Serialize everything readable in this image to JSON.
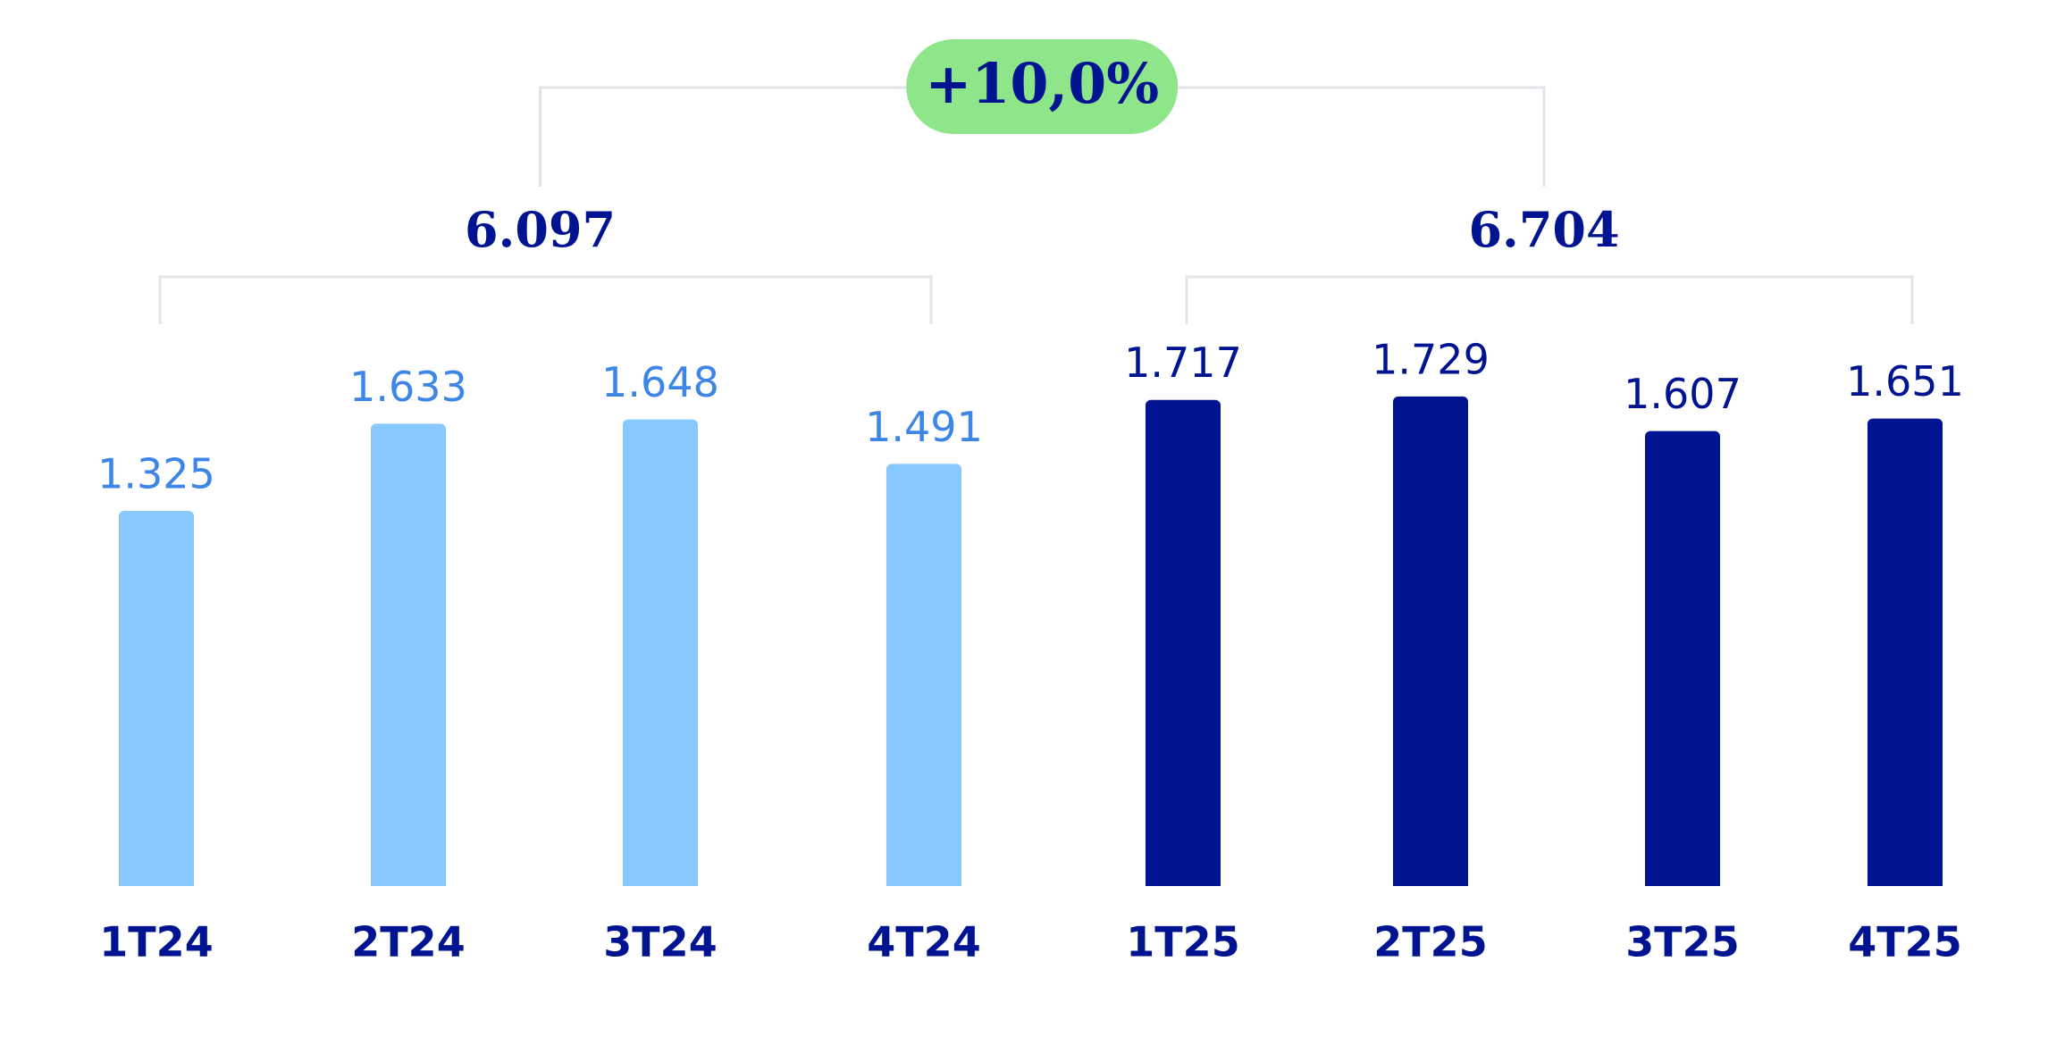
{
  "chart_data": {
    "type": "bar",
    "categories": [
      "1T24",
      "2T24",
      "3T24",
      "4T24",
      "1T25",
      "2T25",
      "3T25",
      "4T25"
    ],
    "values": [
      1325,
      1633,
      1648,
      1491,
      1717,
      1729,
      1607,
      1651
    ],
    "value_labels": [
      "1.325",
      "1.633",
      "1.648",
      "1.491",
      "1.717",
      "1.729",
      "1.607",
      "1.651"
    ],
    "colors": [
      "#87c8ff",
      "#87c8ff",
      "#87c8ff",
      "#87c8ff",
      "#001391",
      "#001391",
      "#001391",
      "#001391"
    ],
    "label_colors": [
      "#3d86e8",
      "#3d86e8",
      "#3d86e8",
      "#3d86e8",
      "#001391",
      "#001391",
      "#001391",
      "#001391"
    ],
    "groups": [
      {
        "value": 6097,
        "label": "6.097"
      },
      {
        "value": 6704,
        "label": "6.704"
      }
    ],
    "growth": {
      "value": 10.0,
      "label": "+10,0%"
    }
  }
}
